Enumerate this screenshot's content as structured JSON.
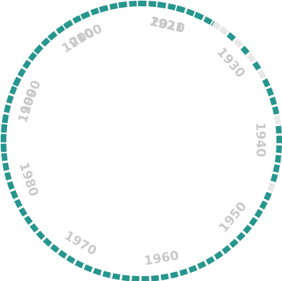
{
  "colors": {
    "active": "#26968e",
    "inactive": "#e8e8e8",
    "baseline": "#e4e4e4",
    "label": "#c9c9c9"
  },
  "chart_data": {
    "type": "radial-bar",
    "title": "",
    "year_start": 1895,
    "year_end": 2015,
    "start_angle_deg": 265,
    "sweep_deg": 130,
    "decade_labels": [
      {
        "text": "1900",
        "year": 1900
      },
      {
        "text": "1910",
        "year": 1910
      },
      {
        "text": "1921",
        "year": 1921
      },
      {
        "text": "1930",
        "year": 1930
      },
      {
        "text": "1940",
        "year": 1940
      },
      {
        "text": "1950",
        "year": 1950
      },
      {
        "text": "1960",
        "year": 1960
      },
      {
        "text": "1970",
        "year": 1970
      },
      {
        "text": "1980",
        "year": 1980
      },
      {
        "text": "1990",
        "year": 1990
      },
      {
        "text": "2000",
        "year": 2000
      },
      {
        "text": "2010",
        "year": 2010
      }
    ],
    "active_years": [
      1895,
      1896,
      1897,
      1898,
      1902,
      1906,
      1908,
      1910,
      1912,
      1914,
      1916,
      1918,
      1920,
      1922,
      1924,
      1926,
      1928,
      1930,
      1932,
      1934,
      1935,
      1936,
      1937,
      1939,
      1940,
      1941,
      1942,
      1943,
      1944,
      1946,
      1947,
      1948,
      1949,
      1950,
      1951,
      1952,
      1953,
      1954,
      1955,
      1956,
      1957,
      1958,
      1959,
      1960,
      1961,
      1962,
      1963,
      1964,
      1965,
      1966,
      1967,
      1968,
      1969,
      1970,
      1971,
      1972,
      1973,
      1974,
      1975,
      1976,
      1977,
      1978,
      1979,
      1980,
      1981,
      1982,
      1983,
      1984,
      1985,
      1986,
      1987,
      1988,
      1989,
      1990,
      1991,
      1992,
      1993,
      1994,
      1995,
      1996,
      1997,
      1998,
      1999,
      2000,
      2001,
      2002,
      2003,
      2004,
      2005,
      2006,
      2007,
      2008,
      2009,
      2010,
      2011,
      2012,
      2013,
      2014
    ]
  }
}
